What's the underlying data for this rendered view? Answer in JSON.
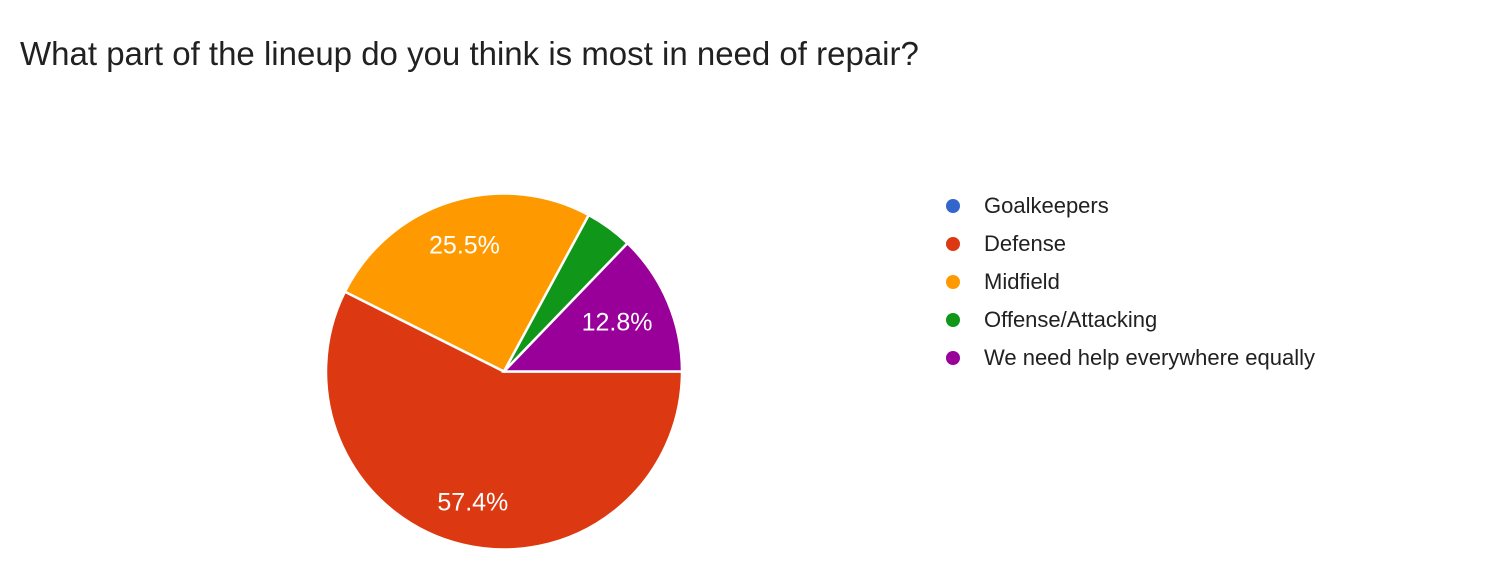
{
  "title": "What part of the lineup do you think is most in need of repair?",
  "colors": {
    "background": "#ffffff",
    "title_text": "#212121",
    "legend_text": "#212121",
    "slice_label_text": "#ffffff",
    "slice_border": "#ffffff"
  },
  "chart_data": {
    "type": "pie",
    "title": "What part of the lineup do you think is most in need of repair?",
    "legend_position": "right",
    "start_angle_deg": 90,
    "direction": "clockwise",
    "total_pct": 100,
    "label_min_pct_shown": 5,
    "slices": [
      {
        "label": "Goalkeepers",
        "value_pct": 0,
        "color": "#3366cc",
        "pct_text": ""
      },
      {
        "label": "Defense",
        "value_pct": 57.4,
        "color": "#dc3912",
        "pct_text": "57.4%"
      },
      {
        "label": "Midfield",
        "value_pct": 25.5,
        "color": "#ff9900",
        "pct_text": "25.5%"
      },
      {
        "label": "Offense/Attacking",
        "value_pct": 4.3,
        "color": "#109618",
        "pct_text": ""
      },
      {
        "label": "We need help everywhere equally",
        "value_pct": 12.8,
        "color": "#990099",
        "pct_text": "12.8%"
      }
    ]
  }
}
